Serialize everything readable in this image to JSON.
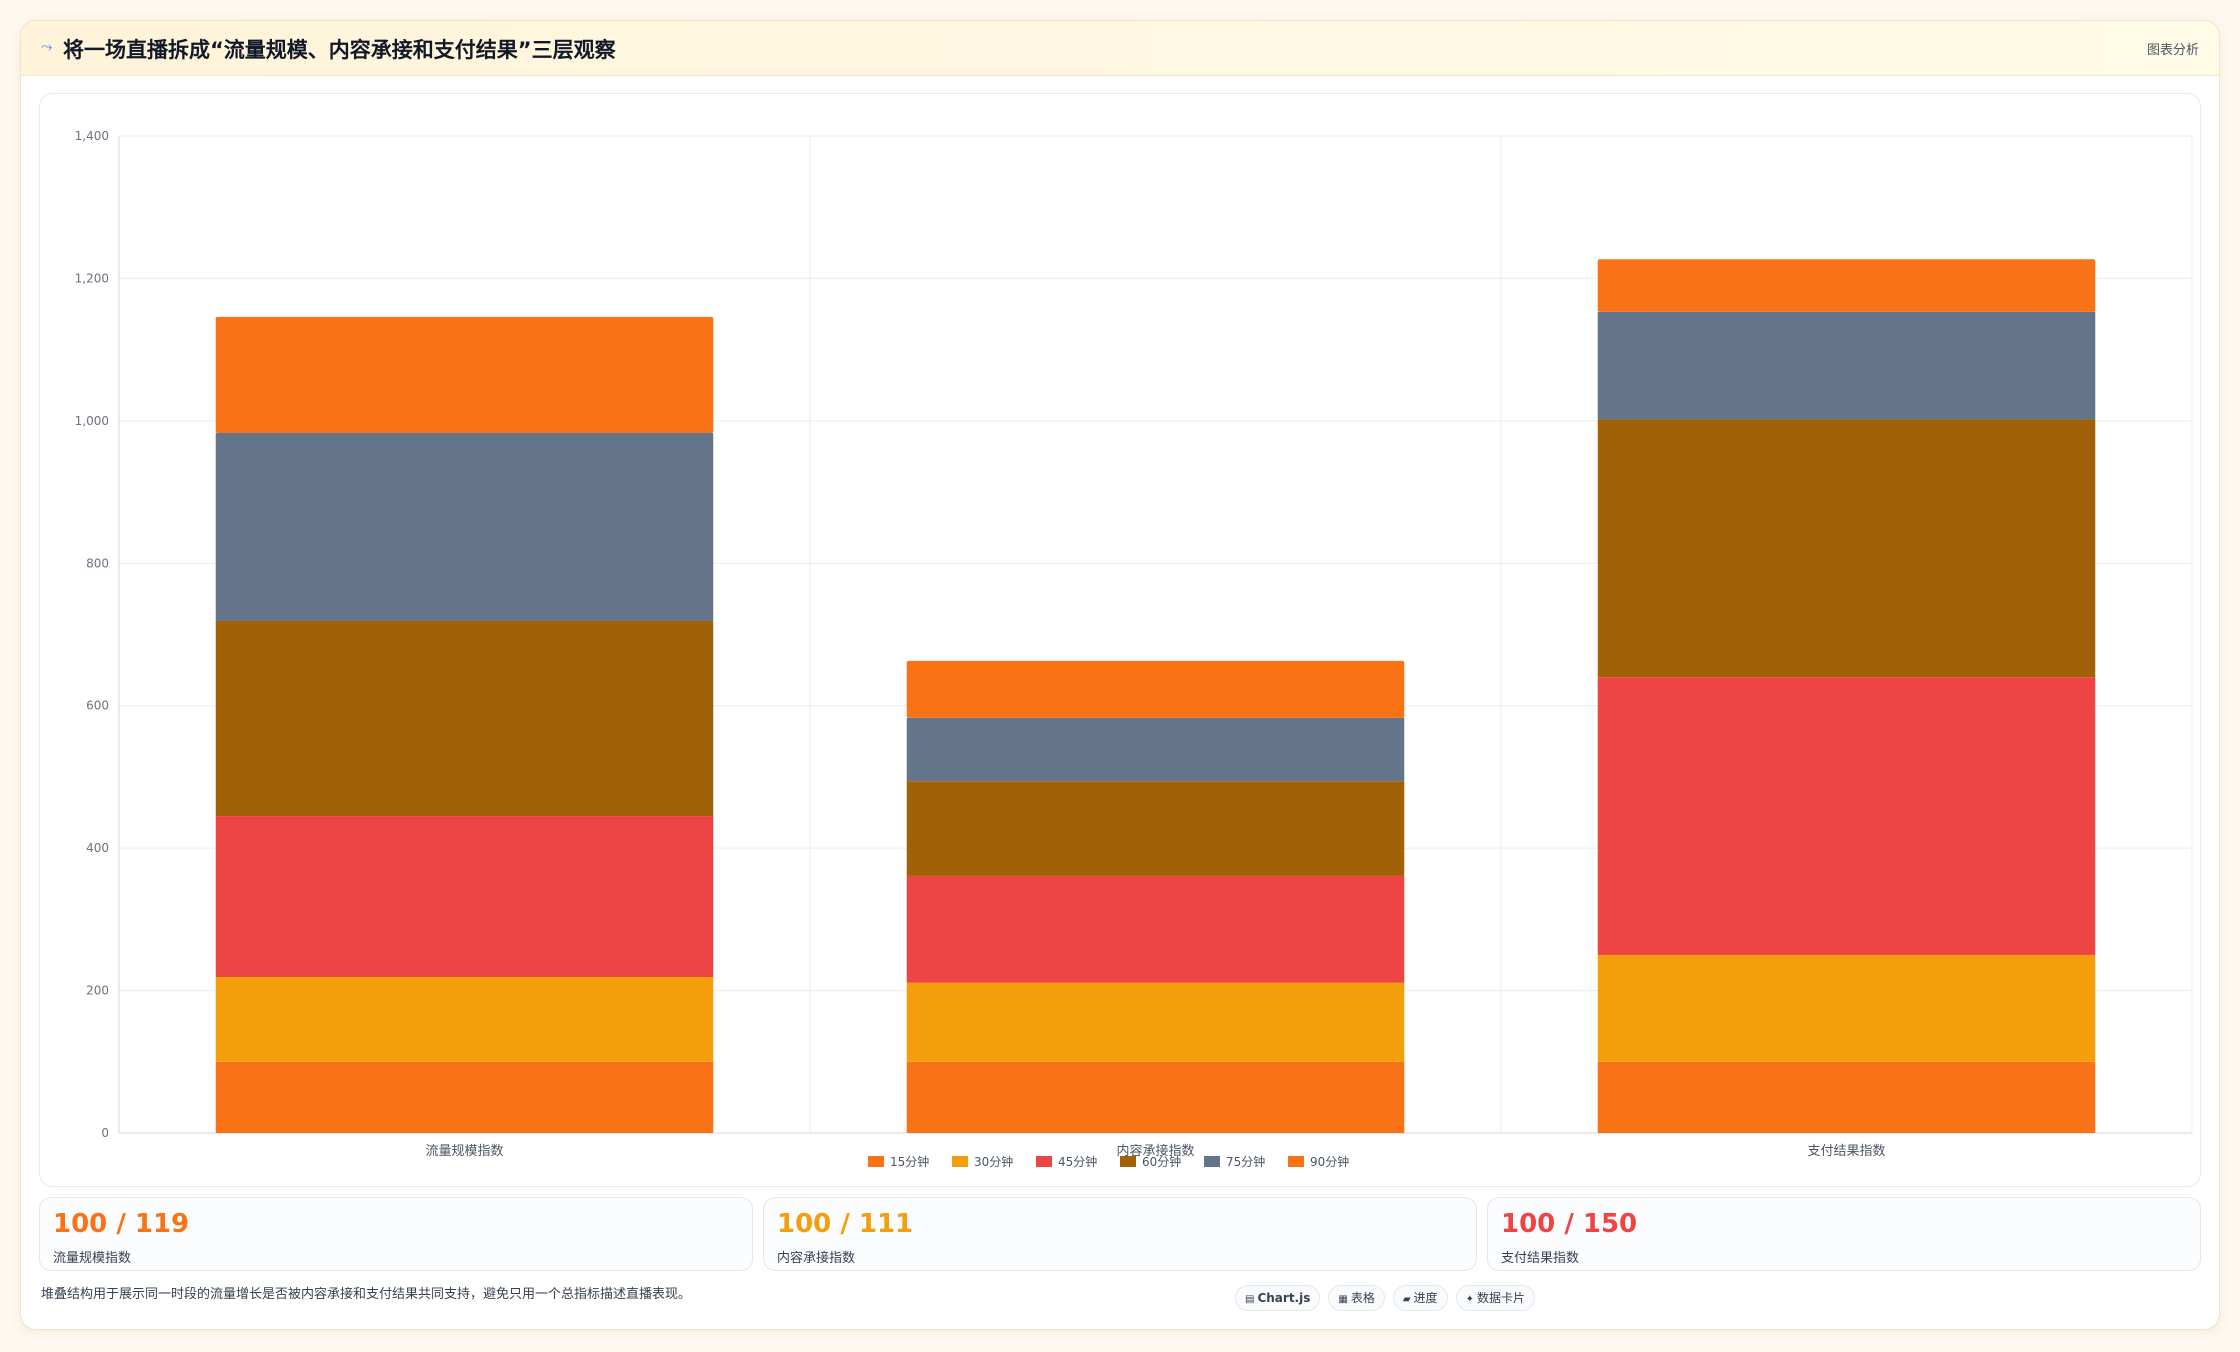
{
  "header": {
    "title_icon": "trend-icon",
    "title": "将一场直播拆成“流量规模、内容承接和支付结果”三层观察",
    "tag": "图表分析"
  },
  "colors": {
    "orange": "#f97316",
    "amber": "#f59e0b",
    "red": "#ef4444",
    "brown": "#a16207",
    "slate": "#64748b",
    "red_text": "#ef4444"
  },
  "chart_data": {
    "type": "bar",
    "stacked": true,
    "categories": [
      "流量规模指数",
      "内容承接指数",
      "支付结果指数"
    ],
    "ylim": [
      0,
      1400
    ],
    "yticks": [
      0,
      200,
      400,
      600,
      800,
      1000,
      1200,
      1400
    ],
    "ytick_labels": [
      "0",
      "200",
      "400",
      "600",
      "800",
      "1,000",
      "1,200",
      "1,400"
    ],
    "grid": true,
    "legend_position": "bottom",
    "series": [
      {
        "name": "15分钟",
        "color": "#f97316",
        "values": [
          100,
          100,
          100
        ]
      },
      {
        "name": "30分钟",
        "color": "#f59e0b",
        "values": [
          119,
          111,
          150
        ]
      },
      {
        "name": "45分钟",
        "color": "#ef4444",
        "values": [
          226,
          150,
          390
        ]
      },
      {
        "name": "60分钟",
        "color": "#a16207",
        "values": [
          274,
          133,
          362
        ]
      },
      {
        "name": "75分钟",
        "color": "#64748b",
        "values": [
          264,
          89,
          151
        ]
      },
      {
        "name": "90分钟",
        "color": "#f97316",
        "values": [
          163,
          80,
          74
        ]
      }
    ]
  },
  "stats": [
    {
      "value": "100 / 119",
      "label": "流量规模指数",
      "color": "#f97316"
    },
    {
      "value": "100 / 111",
      "label": "内容承接指数",
      "color": "#f59e0b"
    },
    {
      "value": "100 / 150",
      "label": "支付结果指数",
      "color": "#ef4444"
    }
  ],
  "note": "堆叠结构用于展示同一时段的流量增长是否被内容承接和支付结果共同支持，避免只用一个总指标描述直播表现。",
  "pills": [
    {
      "icon": "chart-icon",
      "glyph": "▤",
      "label": "Chart.js",
      "bold": true
    },
    {
      "icon": "table-icon",
      "glyph": "▦",
      "label": "表格",
      "bold": false
    },
    {
      "icon": "progress-icon",
      "glyph": "▰",
      "label": "进度",
      "bold": false
    },
    {
      "icon": "card-icon",
      "glyph": "✦",
      "label": "数据卡片",
      "bold": false
    }
  ]
}
